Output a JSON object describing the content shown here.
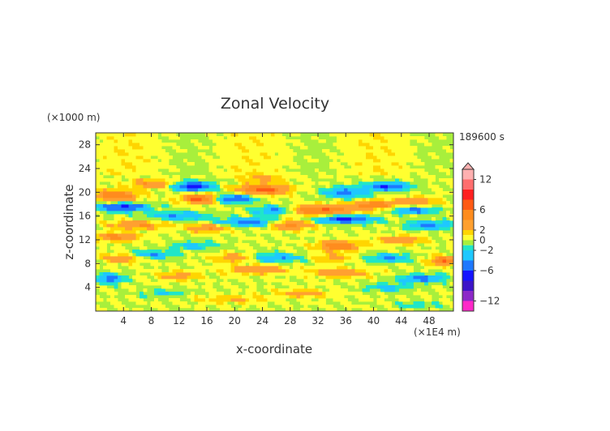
{
  "chart_data": {
    "type": "heatmap",
    "title": "Zonal Velocity",
    "xlabel": "x-coordinate",
    "ylabel": "z-coordinate",
    "x_unit": "(×1E4 m)",
    "y_unit": "(×1000 m)",
    "time_label": "189600 s",
    "xlim": [
      0,
      51.5
    ],
    "ylim": [
      0,
      30
    ],
    "x_ticks": [
      4,
      8,
      12,
      16,
      20,
      24,
      28,
      32,
      36,
      40,
      44,
      48
    ],
    "y_ticks": [
      4,
      8,
      12,
      16,
      20,
      24,
      28
    ],
    "colorbar": {
      "range": [
        -14,
        14
      ],
      "tick_values": [
        12,
        6,
        2,
        0,
        -2,
        -6,
        -12
      ],
      "tick_labels": [
        "12",
        "6",
        "2",
        "0",
        "−2",
        "−6",
        "−12"
      ],
      "levels": [
        {
          "from": 12,
          "to": 14,
          "color": "#ffb0b0"
        },
        {
          "from": 10,
          "to": 12,
          "color": "#ff6e6e"
        },
        {
          "from": 8,
          "to": 10,
          "color": "#ff2020"
        },
        {
          "from": 6,
          "to": 8,
          "color": "#ff5a14"
        },
        {
          "from": 4,
          "to": 6,
          "color": "#ff8c1e"
        },
        {
          "from": 2,
          "to": 4,
          "color": "#ffa030"
        },
        {
          "from": 1,
          "to": 2,
          "color": "#ffd500"
        },
        {
          "from": 0,
          "to": 1,
          "color": "#ffff30"
        },
        {
          "from": -1,
          "to": 0,
          "color": "#a8ef3c"
        },
        {
          "from": -2,
          "to": -1,
          "color": "#20e6c8"
        },
        {
          "from": -4,
          "to": -2,
          "color": "#1ec8ff"
        },
        {
          "from": -6,
          "to": -4,
          "color": "#1e78ff"
        },
        {
          "from": -8,
          "to": -6,
          "color": "#1414ff"
        },
        {
          "from": -10,
          "to": -8,
          "color": "#3c14c8"
        },
        {
          "from": -12,
          "to": -10,
          "color": "#8c28c8"
        },
        {
          "from": -14,
          "to": -12,
          "color": "#ff28c8"
        }
      ]
    },
    "features": [
      {
        "x": 3,
        "z": 19.5,
        "sx": 3,
        "sz": 0.9,
        "v": 6
      },
      {
        "x": 4,
        "z": 17.5,
        "sx": 3.5,
        "sz": 0.7,
        "v": -7
      },
      {
        "x": 8,
        "z": 21.5,
        "sx": 3,
        "sz": 0.7,
        "v": 4
      },
      {
        "x": 14,
        "z": 21,
        "sx": 2.5,
        "sz": 0.8,
        "v": -8
      },
      {
        "x": 15,
        "z": 19,
        "sx": 2.5,
        "sz": 0.8,
        "v": 7
      },
      {
        "x": 20,
        "z": 19,
        "sx": 3,
        "sz": 0.7,
        "v": -6
      },
      {
        "x": 24,
        "z": 20.5,
        "sx": 3.5,
        "sz": 0.9,
        "v": 7
      },
      {
        "x": 26,
        "z": 17,
        "sx": 3,
        "sz": 0.8,
        "v": -6
      },
      {
        "x": 32,
        "z": 17,
        "sx": 6,
        "sz": 0.9,
        "v": 6
      },
      {
        "x": 36,
        "z": 15.5,
        "sx": 4,
        "sz": 0.7,
        "v": -7
      },
      {
        "x": 36,
        "z": 20,
        "sx": 3,
        "sz": 0.9,
        "v": -5
      },
      {
        "x": 40,
        "z": 18,
        "sx": 3,
        "sz": 0.7,
        "v": 5
      },
      {
        "x": 42,
        "z": 21,
        "sx": 3,
        "sz": 0.7,
        "v": -6
      },
      {
        "x": 46,
        "z": 18.5,
        "sx": 3,
        "sz": 0.7,
        "v": 4
      },
      {
        "x": 46,
        "z": 17,
        "sx": 3,
        "sz": 0.6,
        "v": -5
      },
      {
        "x": 12,
        "z": 16,
        "sx": 4,
        "sz": 0.7,
        "v": -4
      },
      {
        "x": 22,
        "z": 15,
        "sx": 4,
        "sz": 0.7,
        "v": -5
      },
      {
        "x": 28,
        "z": 14.5,
        "sx": 3,
        "sz": 0.8,
        "v": 5
      },
      {
        "x": 6,
        "z": 14.5,
        "sx": 4,
        "sz": 0.7,
        "v": 4
      },
      {
        "x": 16,
        "z": 14,
        "sx": 3,
        "sz": 0.7,
        "v": 4
      },
      {
        "x": 24,
        "z": 22.5,
        "sx": 3,
        "sz": 0.6,
        "v": 3
      },
      {
        "x": 35,
        "z": 11,
        "sx": 3,
        "sz": 0.8,
        "v": 6
      },
      {
        "x": 44,
        "z": 12,
        "sx": 3,
        "sz": 0.7,
        "v": 4
      },
      {
        "x": 48,
        "z": 14.5,
        "sx": 3,
        "sz": 0.7,
        "v": -5
      },
      {
        "x": 3,
        "z": 12.5,
        "sx": 3,
        "sz": 0.7,
        "v": 5
      },
      {
        "x": 14,
        "z": 11,
        "sx": 3,
        "sz": 0.7,
        "v": -3
      },
      {
        "x": 4,
        "z": 9,
        "sx": 3,
        "sz": 0.7,
        "v": 4
      },
      {
        "x": 8,
        "z": 9.5,
        "sx": 3,
        "sz": 0.7,
        "v": -4
      },
      {
        "x": 20,
        "z": 9,
        "sx": 3,
        "sz": 0.7,
        "v": 4
      },
      {
        "x": 26,
        "z": 9,
        "sx": 4,
        "sz": 0.7,
        "v": -4
      },
      {
        "x": 34,
        "z": 9,
        "sx": 3,
        "sz": 0.7,
        "v": 3
      },
      {
        "x": 42,
        "z": 9,
        "sx": 3,
        "sz": 0.7,
        "v": -4
      },
      {
        "x": 50,
        "z": 8.5,
        "sx": 2,
        "sz": 0.7,
        "v": 6
      },
      {
        "x": 23,
        "z": 7,
        "sx": 4,
        "sz": 0.7,
        "v": 4
      },
      {
        "x": 12,
        "z": 6,
        "sx": 3,
        "sz": 0.7,
        "v": 3
      },
      {
        "x": 35,
        "z": 6.5,
        "sx": 4,
        "sz": 0.7,
        "v": 4
      },
      {
        "x": 2,
        "z": 5.5,
        "sx": 2,
        "sz": 0.8,
        "v": -5
      },
      {
        "x": 47,
        "z": 5.5,
        "sx": 3,
        "sz": 0.7,
        "v": -5
      },
      {
        "x": 42,
        "z": 4,
        "sx": 3,
        "sz": 0.7,
        "v": -3
      },
      {
        "x": 30,
        "z": 3,
        "sx": 4,
        "sz": 0.6,
        "v": 3
      },
      {
        "x": 10,
        "z": 3,
        "sx": 3,
        "sz": 0.6,
        "v": -2
      },
      {
        "x": 20,
        "z": 2,
        "sx": 5,
        "sz": 0.6,
        "v": 2
      },
      {
        "x": 46,
        "z": 1,
        "sx": 3,
        "sz": 0.5,
        "v": -2
      }
    ]
  }
}
